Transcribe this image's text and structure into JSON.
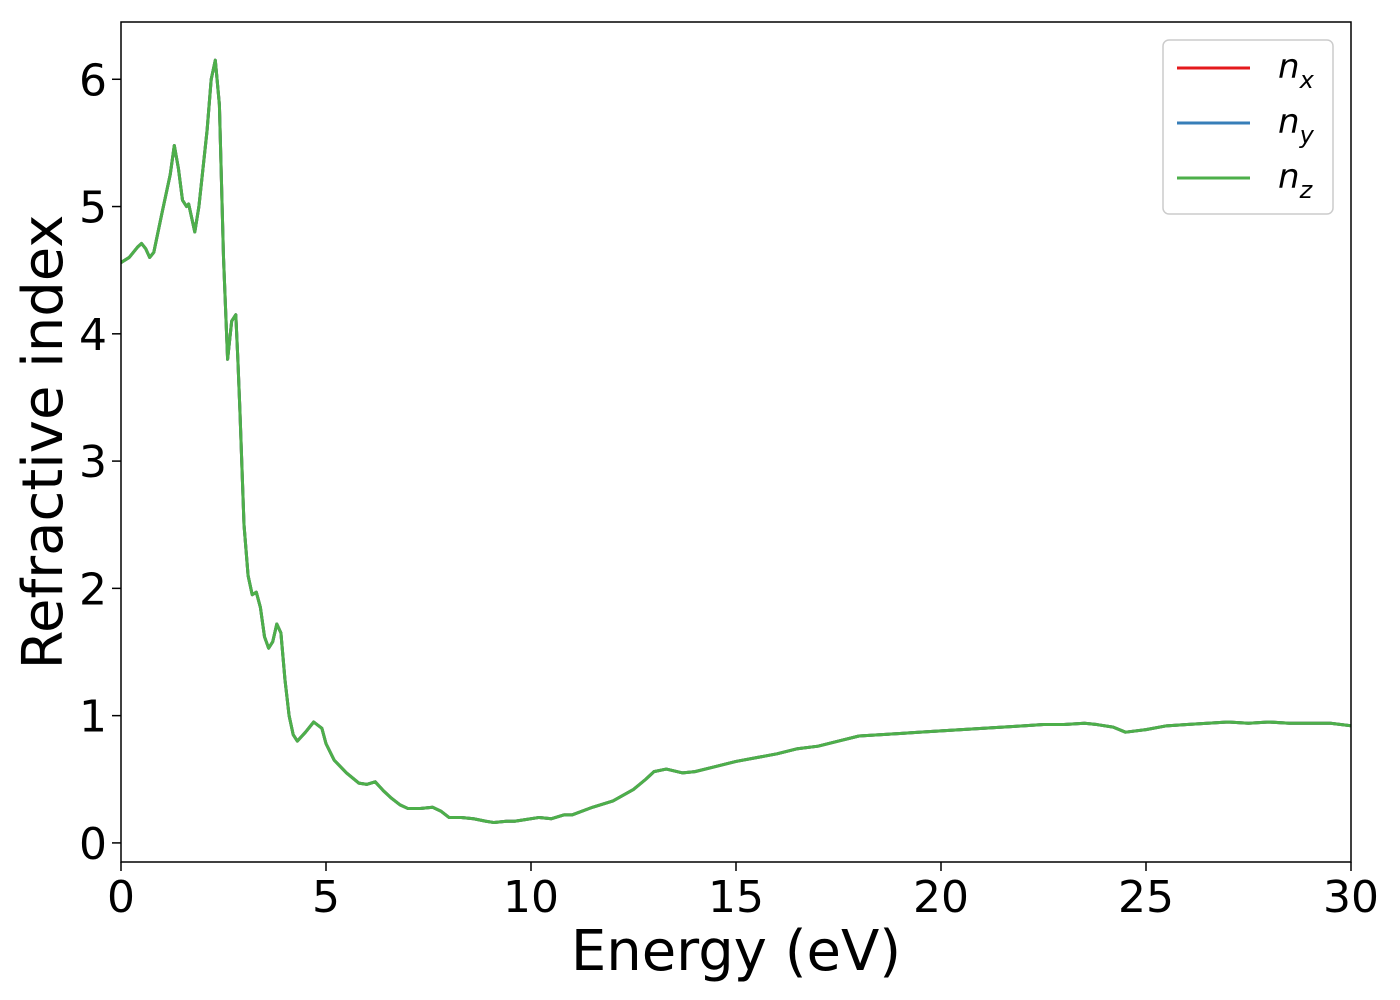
{
  "chart_data": {
    "type": "line",
    "xlabel": "Energy (eV)",
    "ylabel": "Refractive index",
    "xlim": [
      0,
      30
    ],
    "ylim": [
      -0.15,
      6.45
    ],
    "xticks": [
      0,
      5,
      10,
      15,
      20,
      25,
      30
    ],
    "yticks": [
      0,
      1,
      2,
      3,
      4,
      5,
      6
    ],
    "grid": false,
    "legend_position": "top-right",
    "x": [
      0,
      0.2,
      0.4,
      0.5,
      0.6,
      0.7,
      0.8,
      1.0,
      1.1,
      1.2,
      1.3,
      1.4,
      1.5,
      1.6,
      1.65,
      1.8,
      1.9,
      2.0,
      2.1,
      2.2,
      2.3,
      2.4,
      2.5,
      2.6,
      2.7,
      2.8,
      2.85,
      2.9,
      3.0,
      3.1,
      3.2,
      3.3,
      3.4,
      3.5,
      3.6,
      3.7,
      3.8,
      3.9,
      4.0,
      4.1,
      4.2,
      4.3,
      4.5,
      4.7,
      4.9,
      5.0,
      5.2,
      5.5,
      5.8,
      6.0,
      6.2,
      6.4,
      6.6,
      6.8,
      7.0,
      7.3,
      7.6,
      7.8,
      8.0,
      8.3,
      8.6,
      8.9,
      9.1,
      9.4,
      9.6,
      9.8,
      10.2,
      10.5,
      10.8,
      11.0,
      11.5,
      12.0,
      12.5,
      12.8,
      13.0,
      13.3,
      13.7,
      14.0,
      14.5,
      15.0,
      15.5,
      16.0,
      16.5,
      17.0,
      17.5,
      18.0,
      18.5,
      19.0,
      19.5,
      20.0,
      20.5,
      21.0,
      21.5,
      22.0,
      22.5,
      23.0,
      23.5,
      23.8,
      24.2,
      24.5,
      25.0,
      25.5,
      26.0,
      26.5,
      27.0,
      27.5,
      28.0,
      28.5,
      29.0,
      29.5,
      30.0
    ],
    "series": [
      {
        "name": "n_x",
        "label_base": "n",
        "label_sub": "x",
        "color": "#e41a1c",
        "values": [
          4.56,
          4.6,
          4.68,
          4.71,
          4.67,
          4.6,
          4.64,
          4.95,
          5.1,
          5.25,
          5.48,
          5.3,
          5.05,
          5.0,
          5.02,
          4.8,
          5.0,
          5.3,
          5.6,
          6.0,
          6.15,
          5.8,
          4.6,
          3.8,
          4.1,
          4.15,
          3.8,
          3.4,
          2.5,
          2.1,
          1.95,
          1.97,
          1.85,
          1.62,
          1.53,
          1.58,
          1.72,
          1.65,
          1.28,
          1.0,
          0.85,
          0.8,
          0.87,
          0.95,
          0.9,
          0.78,
          0.65,
          0.55,
          0.47,
          0.46,
          0.48,
          0.41,
          0.35,
          0.3,
          0.27,
          0.27,
          0.28,
          0.25,
          0.2,
          0.2,
          0.19,
          0.17,
          0.16,
          0.17,
          0.17,
          0.18,
          0.2,
          0.19,
          0.22,
          0.22,
          0.28,
          0.33,
          0.42,
          0.5,
          0.56,
          0.58,
          0.55,
          0.56,
          0.6,
          0.64,
          0.67,
          0.7,
          0.74,
          0.76,
          0.8,
          0.84,
          0.85,
          0.86,
          0.87,
          0.88,
          0.89,
          0.9,
          0.91,
          0.92,
          0.93,
          0.93,
          0.94,
          0.93,
          0.91,
          0.87,
          0.89,
          0.92,
          0.93,
          0.94,
          0.95,
          0.94,
          0.95,
          0.94,
          0.94,
          0.94,
          0.92
        ]
      },
      {
        "name": "n_y",
        "label_base": "n",
        "label_sub": "y",
        "color": "#377eb8",
        "values": [
          4.56,
          4.6,
          4.68,
          4.71,
          4.67,
          4.6,
          4.64,
          4.95,
          5.1,
          5.25,
          5.48,
          5.3,
          5.05,
          5.0,
          5.02,
          4.8,
          5.0,
          5.3,
          5.6,
          6.0,
          6.15,
          5.8,
          4.6,
          3.8,
          4.1,
          4.15,
          3.8,
          3.4,
          2.5,
          2.1,
          1.95,
          1.97,
          1.85,
          1.62,
          1.53,
          1.58,
          1.72,
          1.65,
          1.28,
          1.0,
          0.85,
          0.8,
          0.87,
          0.95,
          0.9,
          0.78,
          0.65,
          0.55,
          0.47,
          0.46,
          0.48,
          0.41,
          0.35,
          0.3,
          0.27,
          0.27,
          0.28,
          0.25,
          0.2,
          0.2,
          0.19,
          0.17,
          0.16,
          0.17,
          0.17,
          0.18,
          0.2,
          0.19,
          0.22,
          0.22,
          0.28,
          0.33,
          0.42,
          0.5,
          0.56,
          0.58,
          0.55,
          0.56,
          0.6,
          0.64,
          0.67,
          0.7,
          0.74,
          0.76,
          0.8,
          0.84,
          0.85,
          0.86,
          0.87,
          0.88,
          0.89,
          0.9,
          0.91,
          0.92,
          0.93,
          0.93,
          0.94,
          0.93,
          0.91,
          0.87,
          0.89,
          0.92,
          0.93,
          0.94,
          0.95,
          0.94,
          0.95,
          0.94,
          0.94,
          0.94,
          0.92
        ]
      },
      {
        "name": "n_z",
        "label_base": "n",
        "label_sub": "z",
        "color": "#4daf4a",
        "values": [
          4.56,
          4.6,
          4.68,
          4.71,
          4.67,
          4.6,
          4.64,
          4.95,
          5.1,
          5.25,
          5.48,
          5.3,
          5.05,
          5.0,
          5.02,
          4.8,
          5.0,
          5.3,
          5.6,
          6.0,
          6.15,
          5.8,
          4.6,
          3.8,
          4.1,
          4.15,
          3.8,
          3.4,
          2.5,
          2.1,
          1.95,
          1.97,
          1.85,
          1.62,
          1.53,
          1.58,
          1.72,
          1.65,
          1.28,
          1.0,
          0.85,
          0.8,
          0.87,
          0.95,
          0.9,
          0.78,
          0.65,
          0.55,
          0.47,
          0.46,
          0.48,
          0.41,
          0.35,
          0.3,
          0.27,
          0.27,
          0.28,
          0.25,
          0.2,
          0.2,
          0.19,
          0.17,
          0.16,
          0.17,
          0.17,
          0.18,
          0.2,
          0.19,
          0.22,
          0.22,
          0.28,
          0.33,
          0.42,
          0.5,
          0.56,
          0.58,
          0.55,
          0.56,
          0.6,
          0.64,
          0.67,
          0.7,
          0.74,
          0.76,
          0.8,
          0.84,
          0.85,
          0.86,
          0.87,
          0.88,
          0.89,
          0.9,
          0.91,
          0.92,
          0.93,
          0.93,
          0.94,
          0.93,
          0.91,
          0.87,
          0.89,
          0.92,
          0.93,
          0.94,
          0.95,
          0.94,
          0.95,
          0.94,
          0.94,
          0.94,
          0.92
        ]
      }
    ]
  }
}
